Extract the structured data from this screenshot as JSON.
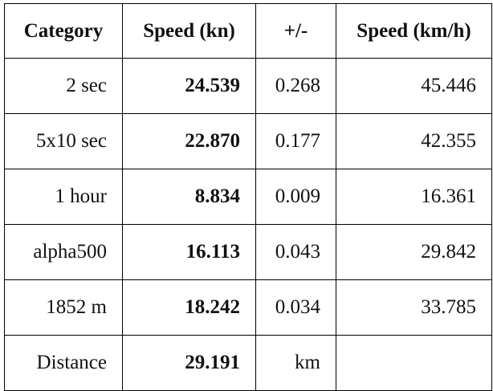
{
  "table": {
    "header": [
      "Category",
      "Speed (kn)",
      "+/-",
      "Speed (km/h)"
    ],
    "rows": [
      [
        "2 sec",
        "24.539",
        "0.268",
        "45.446"
      ],
      [
        "5x10 sec",
        "22.870",
        "0.177",
        "42.355"
      ],
      [
        "1 hour",
        "8.834",
        "0.009",
        "16.361"
      ],
      [
        "alpha500",
        "16.113",
        "0.043",
        "29.842"
      ],
      [
        "1852 m",
        "18.242",
        "0.034",
        "33.785"
      ],
      [
        "Distance",
        "29.191",
        "km"
      ]
    ]
  }
}
